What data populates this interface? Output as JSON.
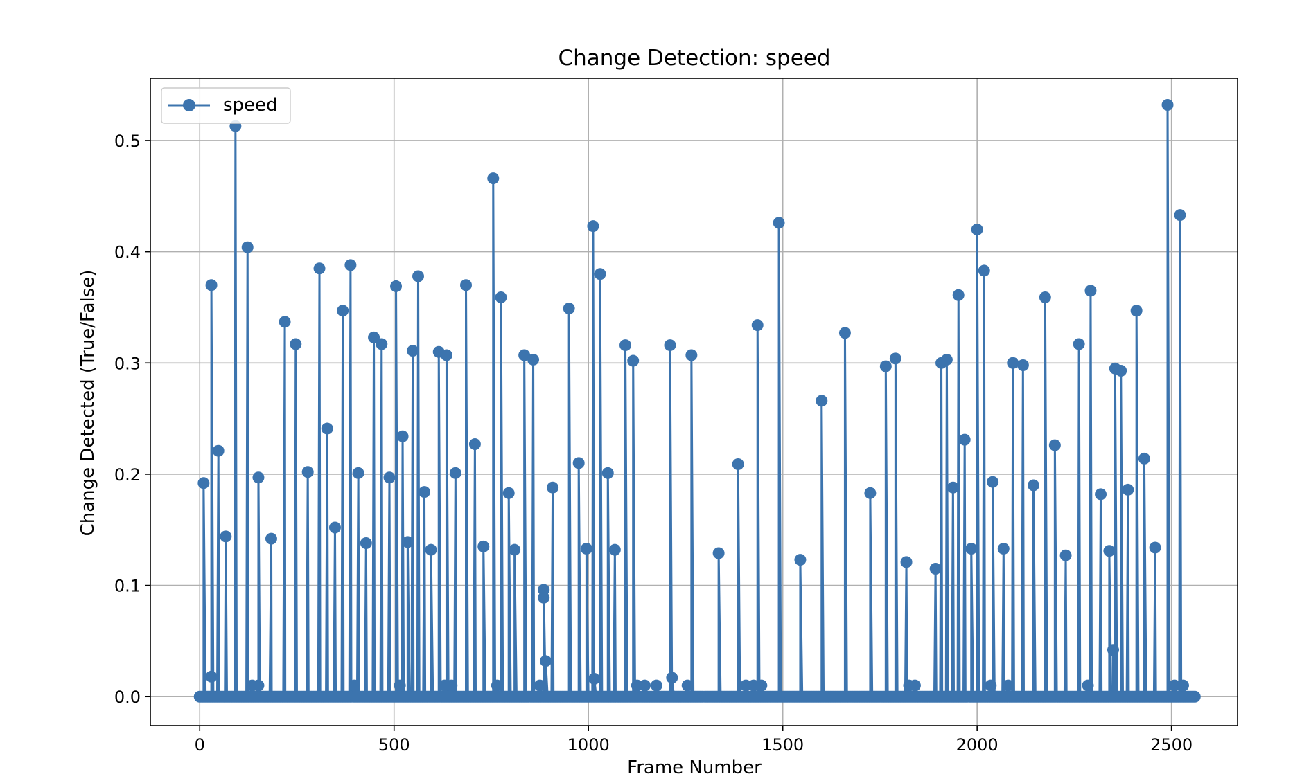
{
  "chart_data": {
    "type": "line",
    "title": "Change Detection: speed",
    "xlabel": "Frame Number",
    "ylabel": "Change Detected (True/False)",
    "xlim": [
      -127,
      2670
    ],
    "ylim": [
      -0.026,
      0.556
    ],
    "xticks": [
      0,
      500,
      1000,
      1500,
      2000,
      2500
    ],
    "yticks": [
      0.0,
      0.1,
      0.2,
      0.3,
      0.4,
      0.5
    ],
    "xtick_labels": [
      "0",
      "500",
      "1000",
      "1500",
      "2000",
      "2500"
    ],
    "ytick_labels": [
      "0.0",
      "0.1",
      "0.2",
      "0.3",
      "0.4",
      "0.5"
    ],
    "grid": true,
    "legend_position": "top-left",
    "series": [
      {
        "name": "speed",
        "color": "#3c74ae",
        "marker": "circle",
        "x_start": 0,
        "x_end": 2560,
        "x_step": 5,
        "baseline": 0.0,
        "peaks": [
          [
            10,
            0.192
          ],
          [
            30,
            0.018
          ],
          [
            30,
            0.37
          ],
          [
            48,
            0.221
          ],
          [
            67,
            0.144
          ],
          [
            92,
            0.513
          ],
          [
            123,
            0.404
          ],
          [
            135,
            0.01
          ],
          [
            151,
            0.197
          ],
          [
            151,
            0.01
          ],
          [
            184,
            0.142
          ],
          [
            219,
            0.337
          ],
          [
            247,
            0.317
          ],
          [
            278,
            0.202
          ],
          [
            308,
            0.385
          ],
          [
            328,
            0.241
          ],
          [
            348,
            0.152
          ],
          [
            368,
            0.347
          ],
          [
            388,
            0.388
          ],
          [
            398,
            0.01
          ],
          [
            408,
            0.201
          ],
          [
            428,
            0.138
          ],
          [
            448,
            0.323
          ],
          [
            468,
            0.317
          ],
          [
            488,
            0.197
          ],
          [
            505,
            0.369
          ],
          [
            515,
            0.01
          ],
          [
            522,
            0.234
          ],
          [
            535,
            0.139
          ],
          [
            548,
            0.311
          ],
          [
            562,
            0.378
          ],
          [
            578,
            0.184
          ],
          [
            595,
            0.132
          ],
          [
            615,
            0.31
          ],
          [
            630,
            0.01
          ],
          [
            635,
            0.307
          ],
          [
            648,
            0.01
          ],
          [
            658,
            0.201
          ],
          [
            685,
            0.37
          ],
          [
            708,
            0.227
          ],
          [
            730,
            0.135
          ],
          [
            755,
            0.466
          ],
          [
            765,
            0.01
          ],
          [
            775,
            0.359
          ],
          [
            795,
            0.183
          ],
          [
            810,
            0.132
          ],
          [
            835,
            0.307
          ],
          [
            858,
            0.303
          ],
          [
            875,
            0.01
          ],
          [
            885,
            0.096
          ],
          [
            885,
            0.089
          ],
          [
            890,
            0.032
          ],
          [
            908,
            0.188
          ],
          [
            950,
            0.349
          ],
          [
            975,
            0.21
          ],
          [
            995,
            0.133
          ],
          [
            1012,
            0.423
          ],
          [
            1015,
            0.016
          ],
          [
            1030,
            0.38
          ],
          [
            1050,
            0.201
          ],
          [
            1068,
            0.132
          ],
          [
            1095,
            0.316
          ],
          [
            1115,
            0.302
          ],
          [
            1125,
            0.01
          ],
          [
            1145,
            0.01
          ],
          [
            1175,
            0.01
          ],
          [
            1210,
            0.316
          ],
          [
            1215,
            0.017
          ],
          [
            1255,
            0.01
          ],
          [
            1265,
            0.307
          ],
          [
            1335,
            0.129
          ],
          [
            1385,
            0.209
          ],
          [
            1405,
            0.01
          ],
          [
            1425,
            0.01
          ],
          [
            1435,
            0.334
          ],
          [
            1445,
            0.01
          ],
          [
            1490,
            0.426
          ],
          [
            1545,
            0.123
          ],
          [
            1600,
            0.266
          ],
          [
            1660,
            0.327
          ],
          [
            1725,
            0.183
          ],
          [
            1765,
            0.297
          ],
          [
            1790,
            0.304
          ],
          [
            1818,
            0.121
          ],
          [
            1825,
            0.01
          ],
          [
            1840,
            0.01
          ],
          [
            1893,
            0.115
          ],
          [
            1908,
            0.3
          ],
          [
            1922,
            0.303
          ],
          [
            1938,
            0.188
          ],
          [
            1952,
            0.361
          ],
          [
            1968,
            0.231
          ],
          [
            1985,
            0.133
          ],
          [
            2000,
            0.42
          ],
          [
            2018,
            0.383
          ],
          [
            2035,
            0.01
          ],
          [
            2040,
            0.193
          ],
          [
            2068,
            0.133
          ],
          [
            2080,
            0.01
          ],
          [
            2092,
            0.3
          ],
          [
            2118,
            0.298
          ],
          [
            2145,
            0.19
          ],
          [
            2175,
            0.359
          ],
          [
            2200,
            0.226
          ],
          [
            2228,
            0.127
          ],
          [
            2262,
            0.317
          ],
          [
            2285,
            0.01
          ],
          [
            2292,
            0.365
          ],
          [
            2318,
            0.182
          ],
          [
            2340,
            0.131
          ],
          [
            2350,
            0.042
          ],
          [
            2355,
            0.295
          ],
          [
            2370,
            0.293
          ],
          [
            2388,
            0.186
          ],
          [
            2410,
            0.347
          ],
          [
            2430,
            0.214
          ],
          [
            2458,
            0.134
          ],
          [
            2490,
            0.532
          ],
          [
            2508,
            0.01
          ],
          [
            2522,
            0.433
          ],
          [
            2530,
            0.01
          ]
        ]
      }
    ]
  }
}
